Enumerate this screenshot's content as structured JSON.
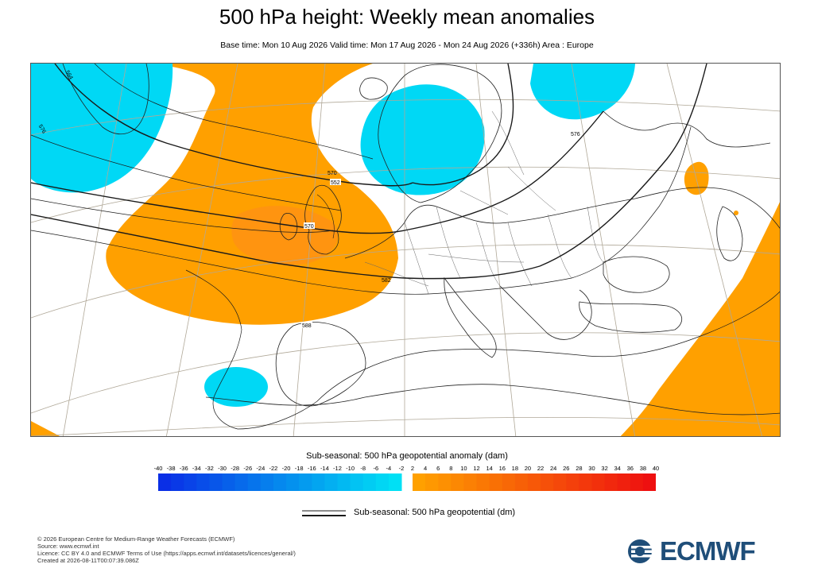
{
  "header": {
    "title": "500 hPa height: Weekly mean anomalies",
    "subtitle": "Base time: Mon 10 Aug 2026 Valid time: Mon 17 Aug 2026 - Mon 24 Aug 2026 (+336h) Area : Europe"
  },
  "map": {
    "area": "Europe",
    "contour_labels": [
      "552",
      "576",
      "564",
      "570",
      "576",
      "582",
      "588",
      "570"
    ],
    "colors": {
      "negative": "#00d8f5",
      "positive": "#ffa000",
      "contour": "#1a1a1a",
      "graticule": "#b0a898",
      "coast": "#222222"
    }
  },
  "colorbar": {
    "title": "Sub-seasonal: 500 hPa geopotential anomaly (dam)",
    "ticks": [
      "-40",
      "-38",
      "-36",
      "-34",
      "-32",
      "-30",
      "-28",
      "-26",
      "-24",
      "-22",
      "-20",
      "-18",
      "-16",
      "-14",
      "-12",
      "-10",
      "-8",
      "-6",
      "-4",
      "-2",
      "2",
      "4",
      "6",
      "8",
      "10",
      "12",
      "14",
      "16",
      "18",
      "20",
      "22",
      "24",
      "26",
      "28",
      "30",
      "32",
      "34",
      "36",
      "38",
      "40"
    ]
  },
  "contour_legend": {
    "label": "Sub-seasonal: 500 hPa geopotential (dm)"
  },
  "footer": {
    "copyright": "© 2026 European Centre for Medium-Range Weather Forecasts (ECMWF)",
    "source": "Source: www.ecmwf.int",
    "licence": "Licence: CC BY 4.0 and ECMWF Terms of Use (https://apps.ecmwf.int/datasets/licences/general/)",
    "created": "Created at 2026-08-11T00:07:39.086Z"
  },
  "logo": {
    "text": "ECMWF",
    "icon": "ecmwf-logo-icon"
  }
}
